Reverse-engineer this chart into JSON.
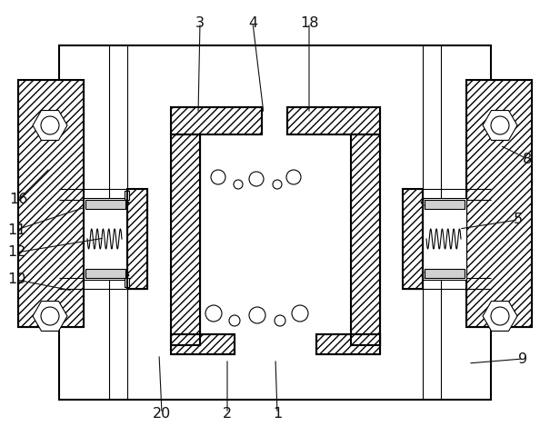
{
  "fig_width": 6.05,
  "fig_height": 4.8,
  "dpi": 100,
  "line_color": "#000000",
  "bg_color": "#ffffff",
  "lw_main": 1.5,
  "lw_thin": 0.8
}
